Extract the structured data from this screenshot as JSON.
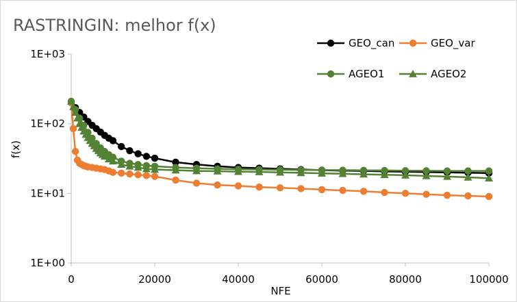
{
  "chart_data": {
    "type": "line",
    "title": "RASTRINGIN: melhor f(x)",
    "xlabel": "NFE",
    "ylabel": "f(x)",
    "xlim": [
      0,
      100000
    ],
    "ylim": [
      1,
      1000
    ],
    "y_scale": "log",
    "x_ticks": [
      0,
      20000,
      40000,
      60000,
      80000,
      100000
    ],
    "x_tick_labels": [
      "0",
      "20000",
      "40000",
      "60000",
      "80000",
      "100000"
    ],
    "y_ticks": [
      1,
      10,
      100,
      1000
    ],
    "y_tick_labels": [
      "1E+00",
      "1E+01",
      "1E+02",
      "1E+03"
    ],
    "grid": false,
    "legend_position": "top-right",
    "series": [
      {
        "name": "GEO_can",
        "color": "#000000",
        "marker": "circle",
        "x": [
          0,
          1000,
          2000,
          3000,
          4000,
          5000,
          6000,
          7000,
          8000,
          9000,
          10000,
          12000,
          14000,
          16000,
          18000,
          20000,
          25000,
          30000,
          35000,
          40000,
          45000,
          50000,
          55000,
          60000,
          65000,
          70000,
          75000,
          80000,
          85000,
          90000,
          95000,
          100000
        ],
        "y": [
          200,
          170,
          145,
          125,
          108,
          95,
          85,
          76,
          68,
          62,
          57,
          47,
          41,
          37,
          34,
          32,
          28,
          26,
          24.5,
          23.5,
          23,
          22.5,
          22,
          21.5,
          21.2,
          21,
          20.7,
          20.4,
          20.2,
          20,
          19.8,
          19.5
        ]
      },
      {
        "name": "GEO_var",
        "color": "#ED7D31",
        "marker": "circle",
        "x": [
          0,
          500,
          1000,
          1500,
          2000,
          2500,
          3000,
          3500,
          4000,
          5000,
          6000,
          7000,
          8000,
          9000,
          10000,
          12000,
          14000,
          16000,
          18000,
          20000,
          25000,
          30000,
          35000,
          40000,
          45000,
          50000,
          55000,
          60000,
          65000,
          70000,
          75000,
          80000,
          85000,
          90000,
          95000,
          100000
        ],
        "y": [
          200,
          85,
          40,
          30,
          27,
          26,
          25,
          24.5,
          24,
          23.5,
          23,
          22.5,
          22,
          21,
          20,
          19.5,
          19,
          18.5,
          18,
          17.5,
          15.5,
          14,
          13.2,
          12.8,
          12.3,
          12,
          11.7,
          11.3,
          11,
          10.7,
          10.3,
          10,
          9.7,
          9.4,
          9.2,
          9
        ]
      },
      {
        "name": "AGEO1",
        "color": "#548235",
        "marker": "circle",
        "x": [
          0,
          1000,
          2000,
          3000,
          4000,
          5000,
          6000,
          7000,
          8000,
          9000,
          10000,
          12000,
          14000,
          16000,
          18000,
          20000,
          25000,
          30000,
          35000,
          40000,
          45000,
          50000,
          55000,
          60000,
          65000,
          70000,
          75000,
          80000,
          85000,
          90000,
          95000,
          100000
        ],
        "y": [
          210,
          160,
          120,
          95,
          75,
          62,
          52,
          45,
          40,
          36,
          33,
          29,
          27,
          26,
          25,
          24.5,
          23.5,
          23,
          22.5,
          22.2,
          22,
          21.8,
          21.7,
          21.6,
          21.5,
          21.4,
          21.3,
          21.2,
          21.1,
          21,
          21,
          21
        ]
      },
      {
        "name": "AGEO2",
        "color": "#548235",
        "marker": "triangle",
        "x": [
          0,
          500,
          1000,
          1500,
          2000,
          2500,
          3000,
          3500,
          4000,
          4500,
          5000,
          5500,
          6000,
          6500,
          7000,
          7500,
          8000,
          9000,
          10000,
          12000,
          14000,
          16000,
          18000,
          20000,
          25000,
          30000,
          35000,
          40000,
          45000,
          50000,
          55000,
          60000,
          65000,
          70000,
          75000,
          80000,
          85000,
          90000,
          95000,
          100000
        ],
        "y": [
          210,
          175,
          145,
          120,
          100,
          88,
          78,
          70,
          63,
          57,
          52,
          48,
          44,
          41,
          38,
          36,
          34,
          31,
          29,
          26,
          24.5,
          23.5,
          22.5,
          22,
          21.5,
          21,
          20.8,
          20.5,
          20.3,
          20,
          19.7,
          19.4,
          19.1,
          18.8,
          18.5,
          18.2,
          17.8,
          17.4,
          17,
          16.5
        ]
      }
    ]
  }
}
